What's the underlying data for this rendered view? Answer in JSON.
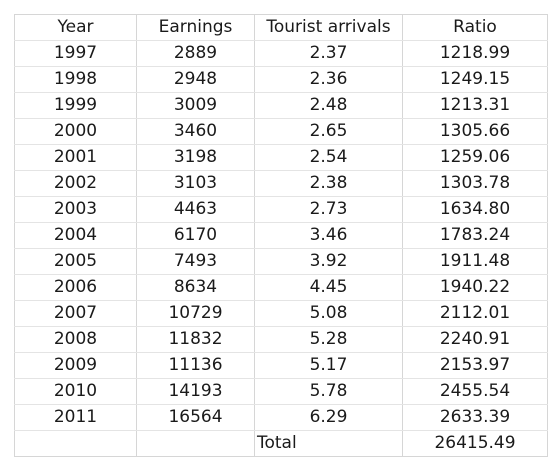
{
  "table": {
    "headers": [
      "Year",
      "Earnings",
      "Tourist arrivals",
      "Ratio"
    ],
    "rows": [
      [
        "1997",
        "2889",
        "2.37",
        "1218.99"
      ],
      [
        "1998",
        "2948",
        "2.36",
        "1249.15"
      ],
      [
        "1999",
        "3009",
        "2.48",
        "1213.31"
      ],
      [
        "2000",
        "3460",
        "2.65",
        "1305.66"
      ],
      [
        "2001",
        "3198",
        "2.54",
        "1259.06"
      ],
      [
        "2002",
        "3103",
        "2.38",
        "1303.78"
      ],
      [
        "2003",
        "4463",
        "2.73",
        "1634.80"
      ],
      [
        "2004",
        "6170",
        "3.46",
        "1783.24"
      ],
      [
        "2005",
        "7493",
        "3.92",
        "1911.48"
      ],
      [
        "2006",
        "8634",
        "4.45",
        "1940.22"
      ],
      [
        "2007",
        "10729",
        "5.08",
        "2112.01"
      ],
      [
        "2008",
        "11832",
        "5.28",
        "2240.91"
      ],
      [
        "2009",
        "11136",
        "5.17",
        "2153.97"
      ],
      [
        "2010",
        "14193",
        "5.78",
        "2455.54"
      ],
      [
        "2011",
        "16564",
        "6.29",
        "2633.39"
      ]
    ],
    "total": {
      "label": "Total",
      "value": "26415.49"
    }
  }
}
